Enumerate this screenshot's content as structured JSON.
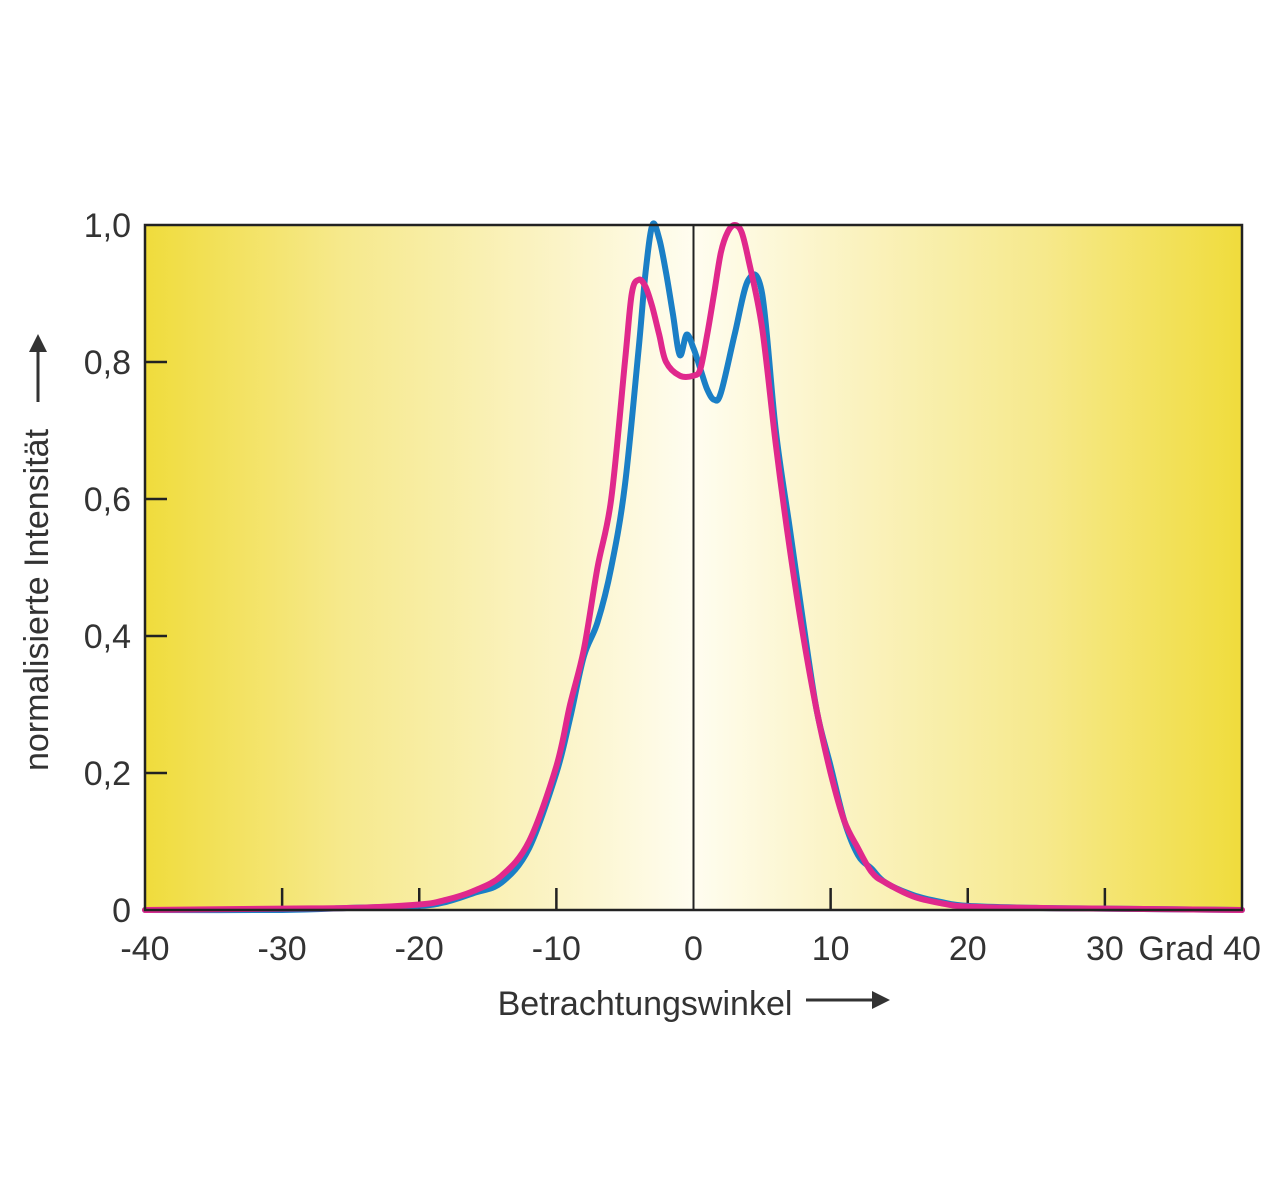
{
  "chart_data": {
    "type": "line",
    "title": "",
    "xlabel": "Betrachtungswinkel",
    "ylabel": "normalisierte Intensität",
    "x_unit": "Grad",
    "xlim": [
      -40,
      40
    ],
    "ylim": [
      0,
      1
    ],
    "x_ticks": [
      -40,
      -30,
      -20,
      -10,
      0,
      10,
      20,
      30,
      40
    ],
    "x_tick_labels": [
      "-40",
      "-30",
      "-20",
      "-10",
      "0",
      "10",
      "20",
      "30",
      "40"
    ],
    "y_ticks": [
      0,
      0.2,
      0.4,
      0.6,
      0.8,
      1.0
    ],
    "y_tick_labels": [
      "0",
      "0,2",
      "0,4",
      "0,6",
      "0,8",
      "1,0"
    ],
    "grid": false,
    "background": "yellow gradient, pale in the center",
    "series": [
      {
        "color": "#1a7fc6",
        "points": [
          [
            -40,
            0.0
          ],
          [
            -30,
            0.0
          ],
          [
            -25,
            0.003
          ],
          [
            -20,
            0.006
          ],
          [
            -18,
            0.012
          ],
          [
            -16,
            0.025
          ],
          [
            -14,
            0.04
          ],
          [
            -12,
            0.09
          ],
          [
            -10,
            0.2
          ],
          [
            -9,
            0.28
          ],
          [
            -8,
            0.37
          ],
          [
            -7,
            0.42
          ],
          [
            -6,
            0.5
          ],
          [
            -5,
            0.62
          ],
          [
            -4,
            0.82
          ],
          [
            -3.5,
            0.93
          ],
          [
            -3,
            1.0
          ],
          [
            -2.5,
            0.98
          ],
          [
            -2,
            0.93
          ],
          [
            -1.5,
            0.87
          ],
          [
            -1,
            0.81
          ],
          [
            -0.5,
            0.84
          ],
          [
            0,
            0.82
          ],
          [
            0.5,
            0.79
          ],
          [
            1,
            0.76
          ],
          [
            1.5,
            0.745
          ],
          [
            2,
            0.755
          ],
          [
            3,
            0.84
          ],
          [
            4,
            0.92
          ],
          [
            5,
            0.9
          ],
          [
            6,
            0.7
          ],
          [
            7,
            0.56
          ],
          [
            8,
            0.42
          ],
          [
            9,
            0.29
          ],
          [
            10,
            0.21
          ],
          [
            11,
            0.13
          ],
          [
            12,
            0.08
          ],
          [
            13,
            0.06
          ],
          [
            14,
            0.04
          ],
          [
            16,
            0.022
          ],
          [
            18,
            0.012
          ],
          [
            20,
            0.006
          ],
          [
            25,
            0.003
          ],
          [
            30,
            0.002
          ],
          [
            40,
            0.0
          ]
        ]
      },
      {
        "color": "#e0288c",
        "points": [
          [
            -40,
            0.0
          ],
          [
            -30,
            0.002
          ],
          [
            -25,
            0.003
          ],
          [
            -20,
            0.008
          ],
          [
            -18,
            0.015
          ],
          [
            -16,
            0.028
          ],
          [
            -14,
            0.05
          ],
          [
            -12,
            0.1
          ],
          [
            -10,
            0.21
          ],
          [
            -9,
            0.3
          ],
          [
            -8,
            0.38
          ],
          [
            -7,
            0.5
          ],
          [
            -6,
            0.6
          ],
          [
            -5,
            0.8
          ],
          [
            -4.5,
            0.9
          ],
          [
            -4,
            0.92
          ],
          [
            -3.5,
            0.91
          ],
          [
            -3,
            0.88
          ],
          [
            -2.5,
            0.84
          ],
          [
            -2,
            0.8
          ],
          [
            -1,
            0.78
          ],
          [
            0,
            0.78
          ],
          [
            0.5,
            0.79
          ],
          [
            1,
            0.84
          ],
          [
            1.5,
            0.9
          ],
          [
            2,
            0.96
          ],
          [
            2.5,
            0.99
          ],
          [
            3,
            1.0
          ],
          [
            3.5,
            0.99
          ],
          [
            4,
            0.95
          ],
          [
            5,
            0.85
          ],
          [
            6,
            0.68
          ],
          [
            7,
            0.53
          ],
          [
            8,
            0.4
          ],
          [
            9,
            0.29
          ],
          [
            10,
            0.2
          ],
          [
            11,
            0.13
          ],
          [
            12,
            0.09
          ],
          [
            13,
            0.055
          ],
          [
            14,
            0.04
          ],
          [
            16,
            0.02
          ],
          [
            18,
            0.01
          ],
          [
            20,
            0.005
          ],
          [
            25,
            0.003
          ],
          [
            30,
            0.002
          ],
          [
            40,
            0.0
          ]
        ]
      }
    ]
  }
}
